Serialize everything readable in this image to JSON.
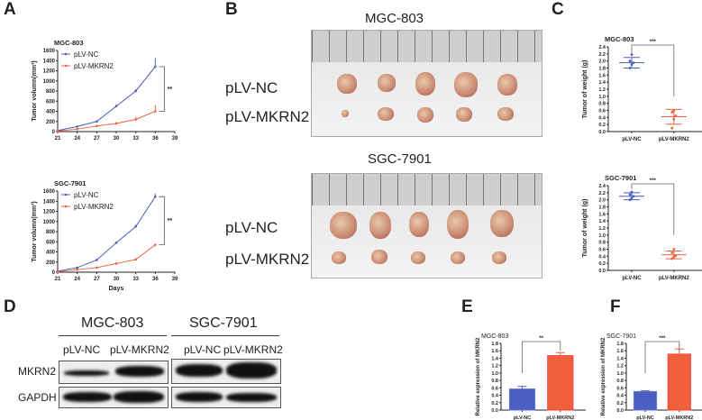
{
  "panels": {
    "A": "A",
    "B": "B",
    "C": "C",
    "D": "D",
    "E": "E",
    "F": "F"
  },
  "colors": {
    "nc": "#4a5fc1",
    "mkrn2": "#f0603a"
  },
  "panelB": {
    "top_title": "MGC-803",
    "bottom_title": "SGC-7901",
    "row1": "pLV-NC",
    "row2": "pLV-MKRN2"
  },
  "panelD": {
    "group1": "MGC-803",
    "group2": "SGC-7901",
    "lane1": "pLV-NC",
    "lane2": "pLV-MKRN2",
    "lane3": "pLV-NC",
    "lane4": "pLV-MKRN2",
    "row1": "MKRN2",
    "row2": "GAPDH"
  },
  "chart_data": [
    {
      "id": "A1",
      "type": "line",
      "title": "MGC-803",
      "xlabel": "",
      "ylabel": "Tumor volumn(mm³)",
      "xlim": [
        21,
        39
      ],
      "ylim": [
        0,
        1600
      ],
      "xticks": [
        21,
        24,
        27,
        30,
        33,
        36,
        39
      ],
      "yticks": [
        0,
        200,
        400,
        600,
        800,
        1000,
        1200,
        1400,
        1600
      ],
      "x": [
        21,
        24,
        27,
        30,
        33,
        36
      ],
      "series": [
        {
          "name": "pLV-NC",
          "values": [
            20,
            100,
            200,
            500,
            800,
            1280
          ],
          "err": [
            5,
            10,
            20,
            40,
            40,
            170
          ]
        },
        {
          "name": "pLV-MKRN2",
          "values": [
            10,
            50,
            110,
            160,
            240,
            400
          ],
          "err": [
            5,
            10,
            20,
            30,
            50,
            120
          ]
        }
      ],
      "annotation": "**",
      "legend": "top-left"
    },
    {
      "id": "A2",
      "type": "line",
      "title": "SGC-7901",
      "xlabel": "Days",
      "ylabel": "Tumor volumn(mm³)",
      "xlim": [
        21,
        39
      ],
      "ylim": [
        0,
        1600
      ],
      "xticks": [
        21,
        24,
        27,
        30,
        33,
        36,
        39
      ],
      "yticks": [
        0,
        200,
        400,
        600,
        800,
        1000,
        1200,
        1400,
        1600
      ],
      "x": [
        21,
        24,
        27,
        30,
        33,
        36
      ],
      "series": [
        {
          "name": "pLV-NC",
          "values": [
            20,
            90,
            240,
            580,
            900,
            1490
          ],
          "err": [
            5,
            10,
            20,
            30,
            40,
            60
          ]
        },
        {
          "name": "pLV-MKRN2",
          "values": [
            10,
            50,
            90,
            170,
            250,
            540
          ],
          "err": [
            5,
            10,
            10,
            15,
            20,
            20
          ]
        }
      ],
      "annotation": "**",
      "legend": "top-left"
    },
    {
      "id": "C1",
      "type": "scatter",
      "title": "MGC-803",
      "ylabel": "Tumor of weight (g)",
      "ylim": [
        0,
        2.4
      ],
      "yticks": [
        "0.0",
        "0.2",
        "0.4",
        "0.6",
        "0.8",
        "1.0",
        "1.2",
        "1.4",
        "1.6",
        "1.8",
        "2.0",
        "2.2",
        "2.4"
      ],
      "categories": [
        "pLV-NC",
        "pLV-MKRN2"
      ],
      "points": [
        [
          1.8,
          1.9,
          1.95,
          2.0,
          2.18
        ],
        [
          0.1,
          0.35,
          0.45,
          0.55,
          0.6
        ]
      ],
      "mean": [
        1.95,
        0.42
      ],
      "sd": [
        0.15,
        0.21
      ],
      "annotation": "***"
    },
    {
      "id": "C2",
      "type": "scatter",
      "title": "SGC-7901",
      "ylabel": "Tumor of weight (g)",
      "ylim": [
        0,
        2.4
      ],
      "yticks": [
        "0.0",
        "0.2",
        "0.4",
        "0.6",
        "0.8",
        "1.0",
        "1.2",
        "1.4",
        "1.6",
        "1.8",
        "2.0",
        "2.2",
        "2.4"
      ],
      "categories": [
        "pLV-NC",
        "pLV-MKRN2"
      ],
      "points": [
        [
          2.0,
          2.05,
          2.1,
          2.15,
          2.22
        ],
        [
          0.33,
          0.38,
          0.42,
          0.5,
          0.6
        ]
      ],
      "mean": [
        2.1,
        0.44
      ],
      "sd": [
        0.1,
        0.11
      ],
      "annotation": "***"
    },
    {
      "id": "E",
      "type": "bar",
      "title": "MGC-803",
      "ylabel": "Relative expression of MKRN2",
      "ylim": [
        0,
        1.8
      ],
      "yticks": [
        "0.0",
        "0.2",
        "0.4",
        "0.6",
        "0.8",
        "1.0",
        "1.2",
        "1.4",
        "1.6",
        "1.8"
      ],
      "categories": [
        "pLV-NC",
        "pLV-MKRN2"
      ],
      "values": [
        0.57,
        1.47
      ],
      "err": [
        0.07,
        0.08
      ],
      "annotation": "**"
    },
    {
      "id": "F",
      "type": "bar",
      "title": "SGC-7901",
      "ylabel": "Relative expression of MKRN2",
      "ylim": [
        0,
        1.8
      ],
      "yticks": [
        "0.0",
        "0.2",
        "0.4",
        "0.6",
        "0.8",
        "1.0",
        "1.2",
        "1.4",
        "1.6",
        "1.8"
      ],
      "categories": [
        "pLV-NC",
        "pLV-MKRN2"
      ],
      "values": [
        0.5,
        1.51
      ],
      "err": [
        0.02,
        0.14
      ],
      "annotation": "***"
    }
  ]
}
